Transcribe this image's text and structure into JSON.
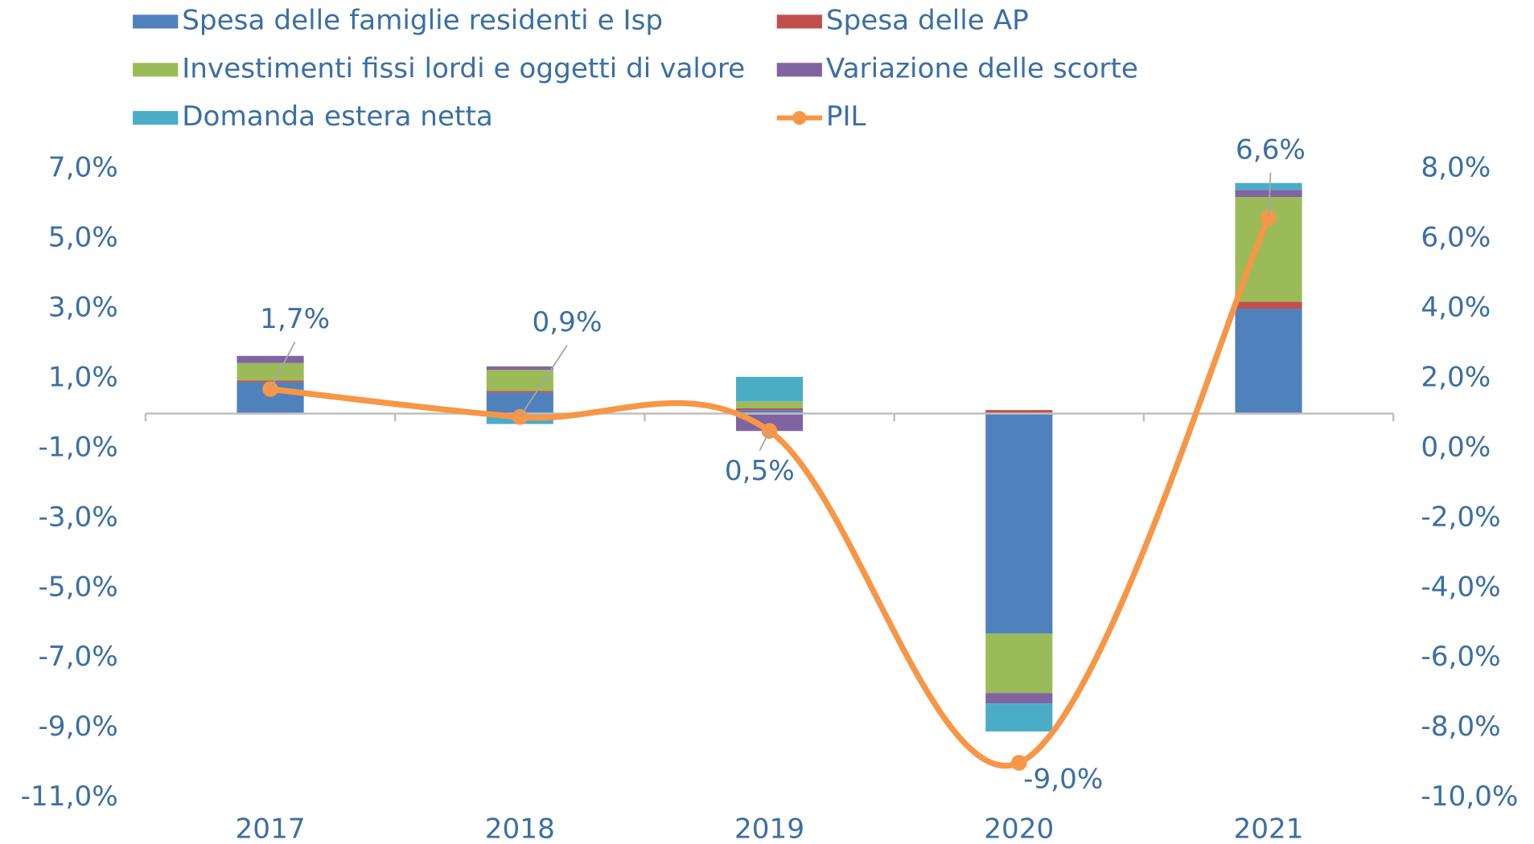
{
  "chart_data": {
    "type": "bar",
    "categories": [
      "2017",
      "2018",
      "2019",
      "2020",
      "2021"
    ],
    "series": [
      {
        "name": "Spesa delle famiglie residenti e Isp",
        "color": "#4f81bd",
        "values": [
          0.9,
          0.6,
          0.1,
          -6.3,
          3.0
        ]
      },
      {
        "name": "Spesa delle AP",
        "color": "#c0504d",
        "values": [
          0.05,
          0.05,
          0.05,
          0.1,
          0.2
        ]
      },
      {
        "name": "Investimenti fissi lordi e oggetti di valore",
        "color": "#9bbb59",
        "values": [
          0.5,
          0.6,
          0.2,
          -1.7,
          3.0
        ]
      },
      {
        "name": "Variazione delle scorte",
        "color": "#8064a2",
        "values": [
          0.2,
          0.1,
          -0.5,
          -0.3,
          0.2
        ]
      },
      {
        "name": "Domanda estera netta",
        "color": "#4bacc6",
        "values": [
          0.0,
          -0.3,
          0.7,
          -0.8,
          0.2
        ]
      },
      {
        "name": "PIL",
        "color": "#f79646",
        "type": "line",
        "axis": "y2",
        "values": [
          1.7,
          0.9,
          0.5,
          -9.0,
          6.6
        ],
        "value_labels": [
          "1,7%",
          "0,9%",
          "0,5%",
          "-9,0%",
          "6,6%"
        ]
      }
    ],
    "ylim": [
      -11,
      7
    ],
    "yticks": [
      {
        "value": 7,
        "label": "7,0%"
      },
      {
        "value": 5,
        "label": "5,0%"
      },
      {
        "value": 3,
        "label": "3,0%"
      },
      {
        "value": 1,
        "label": "1,0%"
      },
      {
        "value": -1,
        "label": "-1,0%"
      },
      {
        "value": -3,
        "label": "-3,0%"
      },
      {
        "value": -5,
        "label": "-5,0%"
      },
      {
        "value": -7,
        "label": "-7,0%"
      },
      {
        "value": -9,
        "label": "-9,0%"
      },
      {
        "value": -11,
        "label": "-11,0%"
      }
    ],
    "y2lim": [
      -10,
      8
    ],
    "y2ticks": [
      {
        "value": 8,
        "label": "8,0%"
      },
      {
        "value": 6,
        "label": "6,0%"
      },
      {
        "value": 4,
        "label": "4,0%"
      },
      {
        "value": 2,
        "label": "2,0%"
      },
      {
        "value": 0,
        "label": "0,0%"
      },
      {
        "value": -2,
        "label": "-2,0%"
      },
      {
        "value": -4,
        "label": "-4,0%"
      },
      {
        "value": -6,
        "label": "-6,0%"
      },
      {
        "value": -8,
        "label": "-8,0%"
      },
      {
        "value": -10,
        "label": "-10,0%"
      }
    ],
    "legend": "top"
  }
}
